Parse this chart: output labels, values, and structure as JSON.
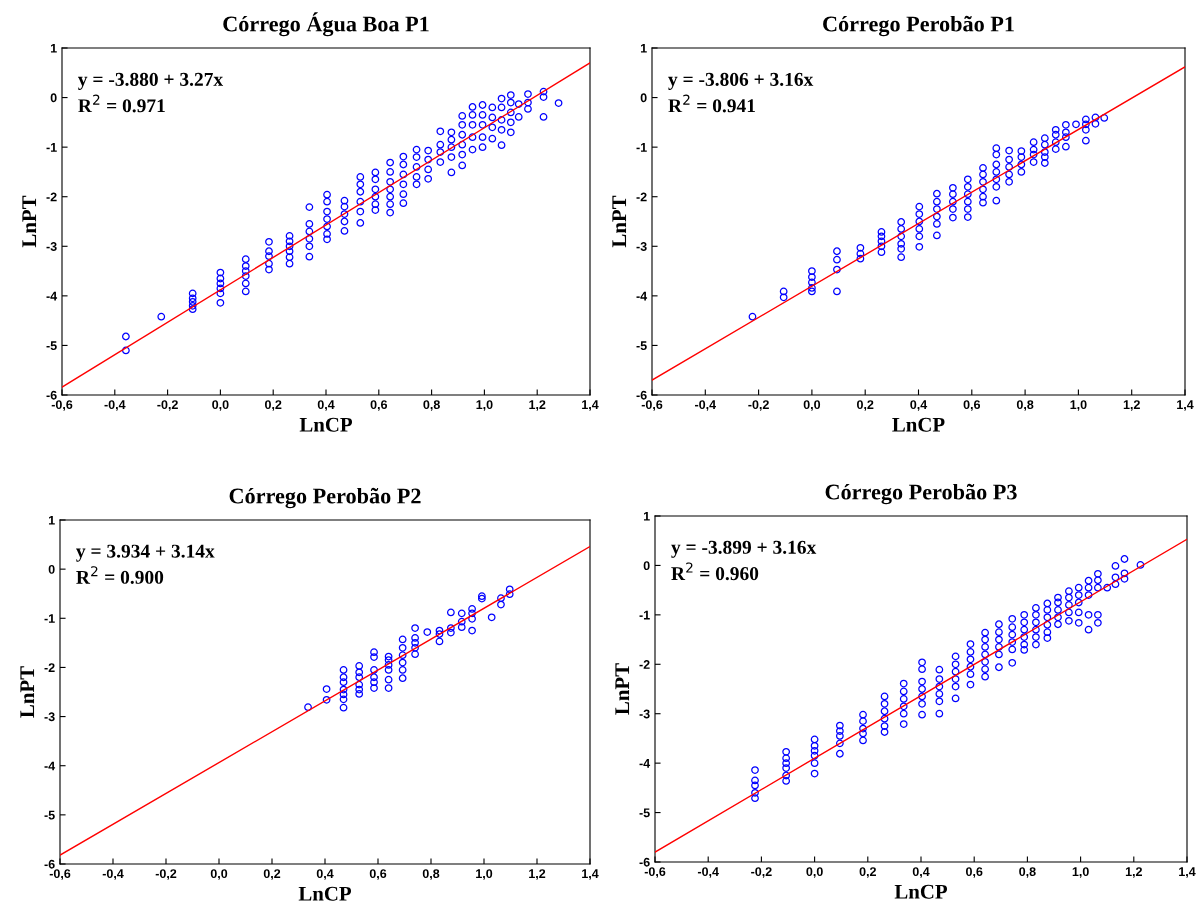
{
  "chart_data": [
    {
      "type": "scatter",
      "title": "Córrego Água Boa P1",
      "xlabel": "LnCP",
      "ylabel": "LnPT",
      "annotations": [
        "y = -3.880 + 3.27x",
        "R$^{2}$ = 0.971"
      ],
      "xlim": [
        -0.6,
        1.4
      ],
      "ylim": [
        -6,
        1
      ],
      "xticks": [
        {
          "value": -0.6,
          "label": "-0,6"
        },
        {
          "value": -0.4,
          "label": "-0,4"
        },
        {
          "value": -0.2,
          "label": "-0,2"
        },
        {
          "value": 0,
          "label": "0,0"
        },
        {
          "value": 0.2,
          "label": "0,2"
        },
        {
          "value": 0.4,
          "label": "0,4"
        },
        {
          "value": 0.6,
          "label": "0,6"
        },
        {
          "value": 0.8,
          "label": "0,8"
        },
        {
          "value": 1.0,
          "label": "1,0"
        },
        {
          "value": 1.2,
          "label": "1,2"
        },
        {
          "value": 1.4,
          "label": "1,4"
        }
      ],
      "yticks": [
        -6,
        -5,
        -4,
        -3,
        -2,
        -1,
        0,
        1
      ],
      "marker": "circle",
      "series": [
        {
          "color": "#0000ff",
          "x": [
            -0.358,
            -0.358,
            -0.224,
            -0.105,
            -0.105,
            -0.105,
            -0.105,
            -0.105,
            0,
            0,
            0,
            0,
            0,
            0,
            0.096,
            0.096,
            0.096,
            0.096,
            0.096,
            0.096,
            0.184,
            0.184,
            0.184,
            0.184,
            0.184,
            0.262,
            0.262,
            0.262,
            0.262,
            0.262,
            0.262,
            0.337,
            0.337,
            0.337,
            0.337,
            0.337,
            0.337,
            0.404,
            0.404,
            0.404,
            0.404,
            0.404,
            0.404,
            0.404,
            0.47,
            0.47,
            0.47,
            0.47,
            0.47,
            0.53,
            0.53,
            0.53,
            0.53,
            0.53,
            0.53,
            0.587,
            0.587,
            0.587,
            0.587,
            0.587,
            0.587,
            0.643,
            0.643,
            0.643,
            0.643,
            0.643,
            0.643,
            0.643,
            0.693,
            0.693,
            0.693,
            0.693,
            0.693,
            0.693,
            0.743,
            0.743,
            0.743,
            0.743,
            0.743,
            0.787,
            0.787,
            0.787,
            0.787,
            0.833,
            0.833,
            0.833,
            0.833,
            0.875,
            0.875,
            0.875,
            0.875,
            0.875,
            0.916,
            0.916,
            0.916,
            0.916,
            0.916,
            0.916,
            0.955,
            0.955,
            0.955,
            0.955,
            0.955,
            0.993,
            0.993,
            0.993,
            0.993,
            0.993,
            1.03,
            1.03,
            1.03,
            1.03,
            1.065,
            1.065,
            1.065,
            1.065,
            1.065,
            1.1,
            1.1,
            1.1,
            1.1,
            1.1,
            1.13,
            1.13,
            1.165,
            1.165,
            1.165,
            1.224,
            1.224,
            1.224,
            1.281
          ],
          "values": [
            -4.82,
            -5.1,
            -4.42,
            -3.95,
            -4.05,
            -4.12,
            -4.2,
            -4.27,
            -3.53,
            -3.65,
            -3.75,
            -3.85,
            -3.95,
            -4.14,
            -3.26,
            -3.4,
            -3.5,
            -3.6,
            -3.75,
            -3.91,
            -2.91,
            -3.1,
            -3.2,
            -3.35,
            -3.47,
            -2.79,
            -2.9,
            -3.0,
            -3.1,
            -3.22,
            -3.35,
            -2.21,
            -2.55,
            -2.7,
            -2.85,
            -3.0,
            -3.21,
            -1.96,
            -2.1,
            -2.3,
            -2.45,
            -2.6,
            -2.75,
            -2.86,
            -2.08,
            -2.2,
            -2.35,
            -2.5,
            -2.69,
            -1.6,
            -1.75,
            -1.9,
            -2.1,
            -2.3,
            -2.53,
            -1.51,
            -1.65,
            -1.85,
            -2.0,
            -2.15,
            -2.27,
            -1.31,
            -1.5,
            -1.7,
            -1.85,
            -2.0,
            -2.15,
            -2.32,
            -1.19,
            -1.35,
            -1.55,
            -1.75,
            -1.95,
            -2.13,
            -1.05,
            -1.2,
            -1.4,
            -1.6,
            -1.75,
            -1.07,
            -1.25,
            -1.45,
            -1.64,
            -0.68,
            -0.95,
            -1.1,
            -1.3,
            -0.7,
            -0.85,
            -1.0,
            -1.2,
            -1.51,
            -0.37,
            -0.55,
            -0.75,
            -0.95,
            -1.15,
            -1.37,
            -0.19,
            -0.35,
            -0.55,
            -0.8,
            -1.05,
            -0.15,
            -0.35,
            -0.55,
            -0.8,
            -1.0,
            -0.2,
            -0.4,
            -0.6,
            -0.83,
            -0.02,
            -0.2,
            -0.45,
            -0.65,
            -0.96,
            0.05,
            -0.1,
            -0.3,
            -0.5,
            -0.7,
            -0.13,
            -0.39,
            0.07,
            -0.1,
            -0.23,
            0.12,
            0.01,
            -0.39,
            -0.11
          ]
        },
        {
          "type": "line",
          "color": "#ff0000",
          "line_style": "solid",
          "marker": "none",
          "x": [
            -0.6,
            1.4
          ],
          "values": [
            -5.84,
            0.7
          ]
        }
      ]
    },
    {
      "type": "scatter",
      "title": "Córrego Perobão P1",
      "xlabel": "LnCP",
      "ylabel": "LnPT",
      "annotations": [
        "y = -3.806 + 3.16x",
        "R$^{2}$ = 0.941"
      ],
      "xlim": [
        -0.6,
        1.4
      ],
      "ylim": [
        -6,
        1
      ],
      "xticks": [
        {
          "value": -0.6,
          "label": "-0,6"
        },
        {
          "value": -0.4,
          "label": "-0,4"
        },
        {
          "value": -0.2,
          "label": "-0,2"
        },
        {
          "value": 0,
          "label": "0,0"
        },
        {
          "value": 0.2,
          "label": "0,2"
        },
        {
          "value": 0.4,
          "label": "0,4"
        },
        {
          "value": 0.6,
          "label": "0,6"
        },
        {
          "value": 0.8,
          "label": "0,8"
        },
        {
          "value": 1.0,
          "label": "1,0"
        },
        {
          "value": 1.2,
          "label": "1,2"
        },
        {
          "value": 1.4,
          "label": "1,4"
        }
      ],
      "yticks": [
        -6,
        -5,
        -4,
        -3,
        -2,
        -1,
        0,
        1
      ],
      "marker": "circle",
      "series": [
        {
          "color": "#0000ff",
          "x": [
            -0.223,
            -0.106,
            -0.106,
            0,
            0,
            0,
            0,
            0,
            0.094,
            0.094,
            0.094,
            0.094,
            0.182,
            0.182,
            0.182,
            0.261,
            0.261,
            0.261,
            0.261,
            0.261,
            0.335,
            0.335,
            0.335,
            0.335,
            0.335,
            0.335,
            0.403,
            0.403,
            0.403,
            0.403,
            0.403,
            0.403,
            0.469,
            0.469,
            0.469,
            0.469,
            0.469,
            0.469,
            0.529,
            0.529,
            0.529,
            0.529,
            0.529,
            0.585,
            0.585,
            0.585,
            0.585,
            0.585,
            0.585,
            0.642,
            0.642,
            0.642,
            0.642,
            0.642,
            0.642,
            0.692,
            0.692,
            0.692,
            0.692,
            0.692,
            0.692,
            0.692,
            0.74,
            0.74,
            0.74,
            0.74,
            0.74,
            0.786,
            0.786,
            0.786,
            0.786,
            0.832,
            0.832,
            0.832,
            0.832,
            0.874,
            0.874,
            0.874,
            0.874,
            0.874,
            0.915,
            0.915,
            0.915,
            0.915,
            0.953,
            0.953,
            0.953,
            0.953,
            0.991,
            1.028,
            1.028,
            1.028,
            1.028,
            1.064,
            1.064,
            1.097
          ],
          "values": [
            -4.42,
            -3.91,
            -4.03,
            -3.5,
            -3.62,
            -3.73,
            -3.84,
            -3.91,
            -3.1,
            -3.27,
            -3.47,
            -3.91,
            -3.03,
            -3.15,
            -3.25,
            -2.71,
            -2.8,
            -2.9,
            -3.0,
            -3.12,
            -2.51,
            -2.65,
            -2.8,
            -2.95,
            -3.05,
            -3.22,
            -2.2,
            -2.35,
            -2.5,
            -2.65,
            -2.8,
            -3.01,
            -1.94,
            -2.1,
            -2.25,
            -2.4,
            -2.55,
            -2.78,
            -1.82,
            -1.95,
            -2.1,
            -2.25,
            -2.42,
            -1.65,
            -1.8,
            -1.95,
            -2.1,
            -2.25,
            -2.41,
            -1.42,
            -1.55,
            -1.7,
            -1.85,
            -2.0,
            -2.12,
            -1.02,
            -1.15,
            -1.35,
            -1.5,
            -1.65,
            -1.8,
            -2.08,
            -1.07,
            -1.25,
            -1.4,
            -1.55,
            -1.7,
            -1.08,
            -1.2,
            -1.35,
            -1.5,
            -0.9,
            -1.05,
            -1.15,
            -1.3,
            -0.82,
            -0.95,
            -1.1,
            -1.2,
            -1.32,
            -0.65,
            -0.75,
            -0.9,
            -1.04,
            -0.55,
            -0.7,
            -0.8,
            -0.99,
            -0.54,
            -0.44,
            -0.54,
            -0.65,
            -0.87,
            -0.4,
            -0.53,
            -0.41
          ]
        },
        {
          "type": "line",
          "color": "#ff0000",
          "line_style": "solid",
          "marker": "none",
          "x": [
            -0.6,
            1.4
          ],
          "values": [
            -5.7,
            0.62
          ]
        }
      ]
    },
    {
      "type": "scatter",
      "title": "Córrego Perobão P2",
      "xlabel": "LnCP",
      "ylabel": "LnPT",
      "annotations": [
        "y = 3.934 + 3.14x",
        "R$^{2}$ = 0.900"
      ],
      "xlim": [
        -0.6,
        1.4
      ],
      "ylim": [
        -6,
        1
      ],
      "xticks": [
        {
          "value": -0.6,
          "label": "-0,6"
        },
        {
          "value": -0.4,
          "label": "-0,4"
        },
        {
          "value": -0.2,
          "label": "-0,2"
        },
        {
          "value": 0,
          "label": "0,0"
        },
        {
          "value": 0.2,
          "label": "0,2"
        },
        {
          "value": 0.4,
          "label": "0,4"
        },
        {
          "value": 0.6,
          "label": "0,6"
        },
        {
          "value": 0.8,
          "label": "0,8"
        },
        {
          "value": 1.0,
          "label": "1,0"
        },
        {
          "value": 1.2,
          "label": "1,2"
        },
        {
          "value": 1.4,
          "label": "1,4"
        }
      ],
      "yticks": [
        -6,
        -5,
        -4,
        -3,
        -2,
        -1,
        0,
        1
      ],
      "marker": "circle",
      "series": [
        {
          "color": "#0000ff",
          "x": [
            0.336,
            0.406,
            0.406,
            0.47,
            0.47,
            0.47,
            0.47,
            0.47,
            0.47,
            0.47,
            0.529,
            0.529,
            0.529,
            0.529,
            0.529,
            0.529,
            0.585,
            0.585,
            0.585,
            0.585,
            0.585,
            0.585,
            0.64,
            0.64,
            0.64,
            0.64,
            0.64,
            0.64,
            0.693,
            0.693,
            0.693,
            0.693,
            0.693,
            0.693,
            0.74,
            0.74,
            0.74,
            0.74,
            0.74,
            0.786,
            0.832,
            0.832,
            0.832,
            0.875,
            0.875,
            0.875,
            0.916,
            0.916,
            0.916,
            0.955,
            0.955,
            0.955,
            0.955,
            0.992,
            0.992,
            1.029,
            1.064,
            1.064,
            1.097,
            1.097
          ],
          "values": [
            -2.81,
            -2.44,
            -2.66,
            -2.05,
            -2.2,
            -2.3,
            -2.45,
            -2.55,
            -2.65,
            -2.82,
            -1.97,
            -2.1,
            -2.2,
            -2.35,
            -2.45,
            -2.54,
            -1.69,
            -1.79,
            -2.05,
            -2.2,
            -2.3,
            -2.42,
            -1.78,
            -1.85,
            -1.95,
            -2.05,
            -2.25,
            -2.42,
            -1.43,
            -1.6,
            -1.75,
            -1.9,
            -2.05,
            -2.22,
            -1.2,
            -1.4,
            -1.5,
            -1.6,
            -1.73,
            -1.28,
            -1.25,
            -1.32,
            -1.47,
            -0.88,
            -1.2,
            -1.29,
            -0.9,
            -1.07,
            -1.18,
            -0.81,
            -0.9,
            -1.01,
            -1.25,
            -0.55,
            -0.6,
            -0.98,
            -0.59,
            -0.72,
            -0.41,
            -0.51
          ]
        },
        {
          "type": "line",
          "color": "#ff0000",
          "line_style": "solid",
          "marker": "none",
          "x": [
            -0.6,
            1.4
          ],
          "values": [
            -5.82,
            0.46
          ]
        }
      ]
    },
    {
      "type": "scatter",
      "title": "Córrego Perobão P3",
      "xlabel": "LnCP",
      "ylabel": "LnPT",
      "annotations": [
        "y = -3.899 + 3.16x",
        "R$^{2}$ = 0.960"
      ],
      "xlim": [
        -0.6,
        1.4
      ],
      "ylim": [
        -6,
        1
      ],
      "xticks": [
        {
          "value": -0.6,
          "label": "-0,6"
        },
        {
          "value": -0.4,
          "label": "-0,4"
        },
        {
          "value": -0.2,
          "label": "-0,2"
        },
        {
          "value": 0,
          "label": "0,0"
        },
        {
          "value": 0.2,
          "label": "0,2"
        },
        {
          "value": 0.4,
          "label": "0,4"
        },
        {
          "value": 0.6,
          "label": "0,6"
        },
        {
          "value": 0.8,
          "label": "0,8"
        },
        {
          "value": 1.0,
          "label": "1,0"
        },
        {
          "value": 1.2,
          "label": "1,2"
        },
        {
          "value": 1.4,
          "label": "1,4"
        }
      ],
      "yticks": [
        -6,
        -5,
        -4,
        -3,
        -2,
        -1,
        0,
        1
      ],
      "marker": "circle",
      "series": [
        {
          "color": "#0000ff",
          "x": [
            -0.224,
            -0.224,
            -0.224,
            -0.224,
            -0.224,
            -0.107,
            -0.107,
            -0.107,
            -0.107,
            -0.107,
            -0.107,
            0,
            0,
            0,
            0,
            0,
            0,
            0.095,
            0.095,
            0.095,
            0.095,
            0.095,
            0.182,
            0.182,
            0.182,
            0.182,
            0.182,
            0.263,
            0.263,
            0.263,
            0.263,
            0.263,
            0.263,
            0.335,
            0.335,
            0.335,
            0.335,
            0.335,
            0.335,
            0.404,
            0.404,
            0.404,
            0.404,
            0.404,
            0.404,
            0.404,
            0.469,
            0.469,
            0.469,
            0.469,
            0.469,
            0.469,
            0.53,
            0.53,
            0.53,
            0.53,
            0.53,
            0.53,
            0.586,
            0.586,
            0.586,
            0.586,
            0.586,
            0.586,
            0.641,
            0.641,
            0.641,
            0.641,
            0.641,
            0.641,
            0.641,
            0.693,
            0.693,
            0.693,
            0.693,
            0.693,
            0.693,
            0.743,
            0.743,
            0.743,
            0.743,
            0.743,
            0.743,
            0.788,
            0.788,
            0.788,
            0.788,
            0.788,
            0.788,
            0.832,
            0.832,
            0.832,
            0.832,
            0.832,
            0.832,
            0.875,
            0.875,
            0.875,
            0.875,
            0.875,
            0.875,
            0.915,
            0.915,
            0.915,
            0.915,
            0.915,
            0.956,
            0.956,
            0.956,
            0.956,
            0.956,
            0.993,
            0.993,
            0.993,
            0.993,
            0.993,
            1.03,
            1.03,
            1.03,
            1.03,
            1.03,
            1.065,
            1.065,
            1.065,
            1.065,
            1.065,
            1.1,
            1.131,
            1.131,
            1.131,
            1.165,
            1.165,
            1.165,
            1.225
          ],
          "values": [
            -4.14,
            -4.35,
            -4.45,
            -4.6,
            -4.71,
            -3.77,
            -3.9,
            -4.0,
            -4.1,
            -4.25,
            -4.36,
            -3.52,
            -3.65,
            -3.75,
            -3.85,
            -4.0,
            -4.21,
            -3.24,
            -3.35,
            -3.45,
            -3.6,
            -3.81,
            -3.02,
            -3.15,
            -3.3,
            -3.4,
            -3.54,
            -2.65,
            -2.8,
            -2.95,
            -3.1,
            -3.25,
            -3.37,
            -2.39,
            -2.55,
            -2.7,
            -2.85,
            -3.0,
            -3.21,
            -1.96,
            -2.1,
            -2.35,
            -2.5,
            -2.65,
            -2.8,
            -3.02,
            -2.11,
            -2.3,
            -2.45,
            -2.6,
            -2.75,
            -3.0,
            -1.84,
            -2.0,
            -2.15,
            -2.3,
            -2.45,
            -2.69,
            -1.59,
            -1.75,
            -1.9,
            -2.05,
            -2.2,
            -2.41,
            -1.36,
            -1.5,
            -1.65,
            -1.8,
            -1.95,
            -2.1,
            -2.25,
            -1.19,
            -1.35,
            -1.5,
            -1.65,
            -1.8,
            -2.06,
            -1.08,
            -1.25,
            -1.4,
            -1.55,
            -1.7,
            -1.97,
            -1.0,
            -1.15,
            -1.3,
            -1.45,
            -1.6,
            -1.71,
            -0.86,
            -1.0,
            -1.15,
            -1.3,
            -1.45,
            -1.6,
            -0.77,
            -0.9,
            -1.05,
            -1.2,
            -1.35,
            -1.47,
            -0.65,
            -0.75,
            -0.9,
            -1.05,
            -1.19,
            -0.52,
            -0.65,
            -0.8,
            -0.95,
            -1.12,
            -0.45,
            -0.6,
            -0.75,
            -0.95,
            -1.16,
            -0.31,
            -0.45,
            -0.6,
            -1.0,
            -1.3,
            -0.17,
            -0.3,
            -0.45,
            -1.0,
            -1.16,
            -0.45,
            -0.01,
            -0.24,
            -0.38,
            0.13,
            -0.16,
            -0.27,
            0.01
          ]
        },
        {
          "type": "line",
          "color": "#ff0000",
          "line_style": "solid",
          "marker": "none",
          "x": [
            -0.6,
            1.4
          ],
          "values": [
            -5.8,
            0.53
          ]
        }
      ]
    }
  ]
}
